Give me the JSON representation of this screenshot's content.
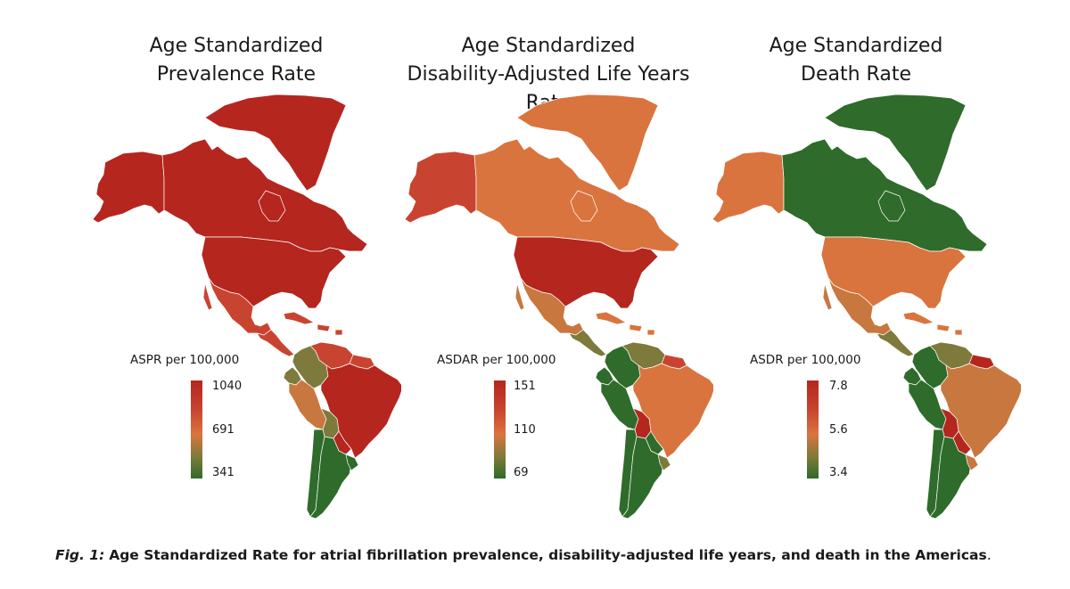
{
  "figure": {
    "caption_label": "Fig. 1:",
    "caption_text": "Age Standardized Rate for atrial fibrillation prevalence, disability-adjusted life years, and death in the Americas",
    "caption_end": "."
  },
  "colors": {
    "high": "#b5261f",
    "upper": "#c94430",
    "mid": "#d9743e",
    "midlow": "#c8773f",
    "lowmid": "#7d7a3b",
    "low": "#2f6b2a"
  },
  "panels": [
    {
      "title_line1": "Age Standardized",
      "title_line2": "Prevalence Rate",
      "legend_title": "ASPR per 100,000",
      "legend_max": "1040",
      "legend_mid": "691",
      "legend_min": "341",
      "regions": {
        "greenland": "high",
        "alaska": "high",
        "canada": "high",
        "usa": "high",
        "mexico": "upper",
        "central_america": "upper",
        "caribbean": "upper",
        "colombia": "lowmid",
        "venezuela": "upper",
        "guianas": "upper",
        "ecuador": "lowmid",
        "peru": "midlow",
        "brazil": "high",
        "bolivia": "lowmid",
        "paraguay": "high",
        "chile": "low",
        "argentina": "low",
        "uruguay": "low"
      }
    },
    {
      "title_line1": "Age Standardized",
      "title_line2": "Disability-Adjusted Life Years Rate",
      "legend_title": "ASDAR per 100,000",
      "legend_max": "151",
      "legend_mid": "110",
      "legend_min": "69",
      "regions": {
        "greenland": "mid",
        "alaska": "upper",
        "canada": "mid",
        "usa": "high",
        "mexico": "midlow",
        "central_america": "lowmid",
        "caribbean": "mid",
        "colombia": "low",
        "venezuela": "lowmid",
        "guianas": "upper",
        "ecuador": "low",
        "peru": "low",
        "brazil": "mid",
        "bolivia": "high",
        "paraguay": "low",
        "chile": "low",
        "argentina": "low",
        "uruguay": "lowmid"
      }
    },
    {
      "title_line1": "Age Standardized",
      "title_line2": "Death Rate",
      "legend_title": "ASDR per 100,000",
      "legend_max": "7.8",
      "legend_mid": "5.6",
      "legend_min": "3.4",
      "regions": {
        "greenland": "low",
        "alaska": "mid",
        "canada": "low",
        "usa": "mid",
        "mexico": "midlow",
        "central_america": "lowmid",
        "caribbean": "mid",
        "colombia": "low",
        "venezuela": "lowmid",
        "guianas": "high",
        "ecuador": "low",
        "peru": "low",
        "brazil": "midlow",
        "bolivia": "high",
        "paraguay": "high",
        "chile": "low",
        "argentina": "low",
        "uruguay": "midlow"
      }
    }
  ]
}
